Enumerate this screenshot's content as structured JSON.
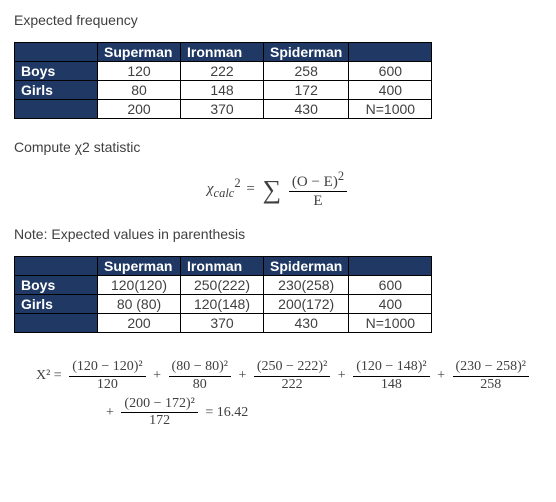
{
  "title1": "Expected frequency",
  "table1": {
    "cols": [
      "Superman",
      "Ironman",
      "Spiderman"
    ],
    "rows": [
      {
        "label": "Boys",
        "cells": [
          "120",
          "222",
          "258"
        ],
        "total": "600"
      },
      {
        "label": "Girls",
        "cells": [
          "80",
          "148",
          "172"
        ],
        "total": "400"
      }
    ],
    "foot": [
      "200",
      "370",
      "430"
    ],
    "grand": "N=1000"
  },
  "title2": "Compute χ2 statistic",
  "formula": {
    "lhs_base": "χ",
    "lhs_sup": "2",
    "lhs_sub": "calc",
    "eq": "=",
    "num": "(O − E)",
    "num_sup": "2",
    "den": "E"
  },
  "title3": "Note: Expected values in parenthesis",
  "table2": {
    "cols": [
      "Superman",
      "Ironman",
      "Spiderman"
    ],
    "rows": [
      {
        "label": "Boys",
        "cells": [
          "120(120)",
          "250(222)",
          "230(258)"
        ],
        "total": "600"
      },
      {
        "label": "Girls",
        "cells": [
          "80 (80)",
          "120(148)",
          "200(172)"
        ],
        "total": "400"
      }
    ],
    "foot": [
      "200",
      "370",
      "430"
    ],
    "grand": "N=1000"
  },
  "calc": {
    "lhs": "X² =",
    "terms": [
      {
        "num": "(120 − 120)²",
        "den": "120"
      },
      {
        "num": "(80 − 80)²",
        "den": "80"
      },
      {
        "num": "(250 − 222)²",
        "den": "222"
      },
      {
        "num": "(120 − 148)²",
        "den": "148"
      },
      {
        "num": "(230 − 258)²",
        "den": "258"
      },
      {
        "num": "(200 − 172)²",
        "den": "172"
      }
    ],
    "result": "= 16.42"
  }
}
